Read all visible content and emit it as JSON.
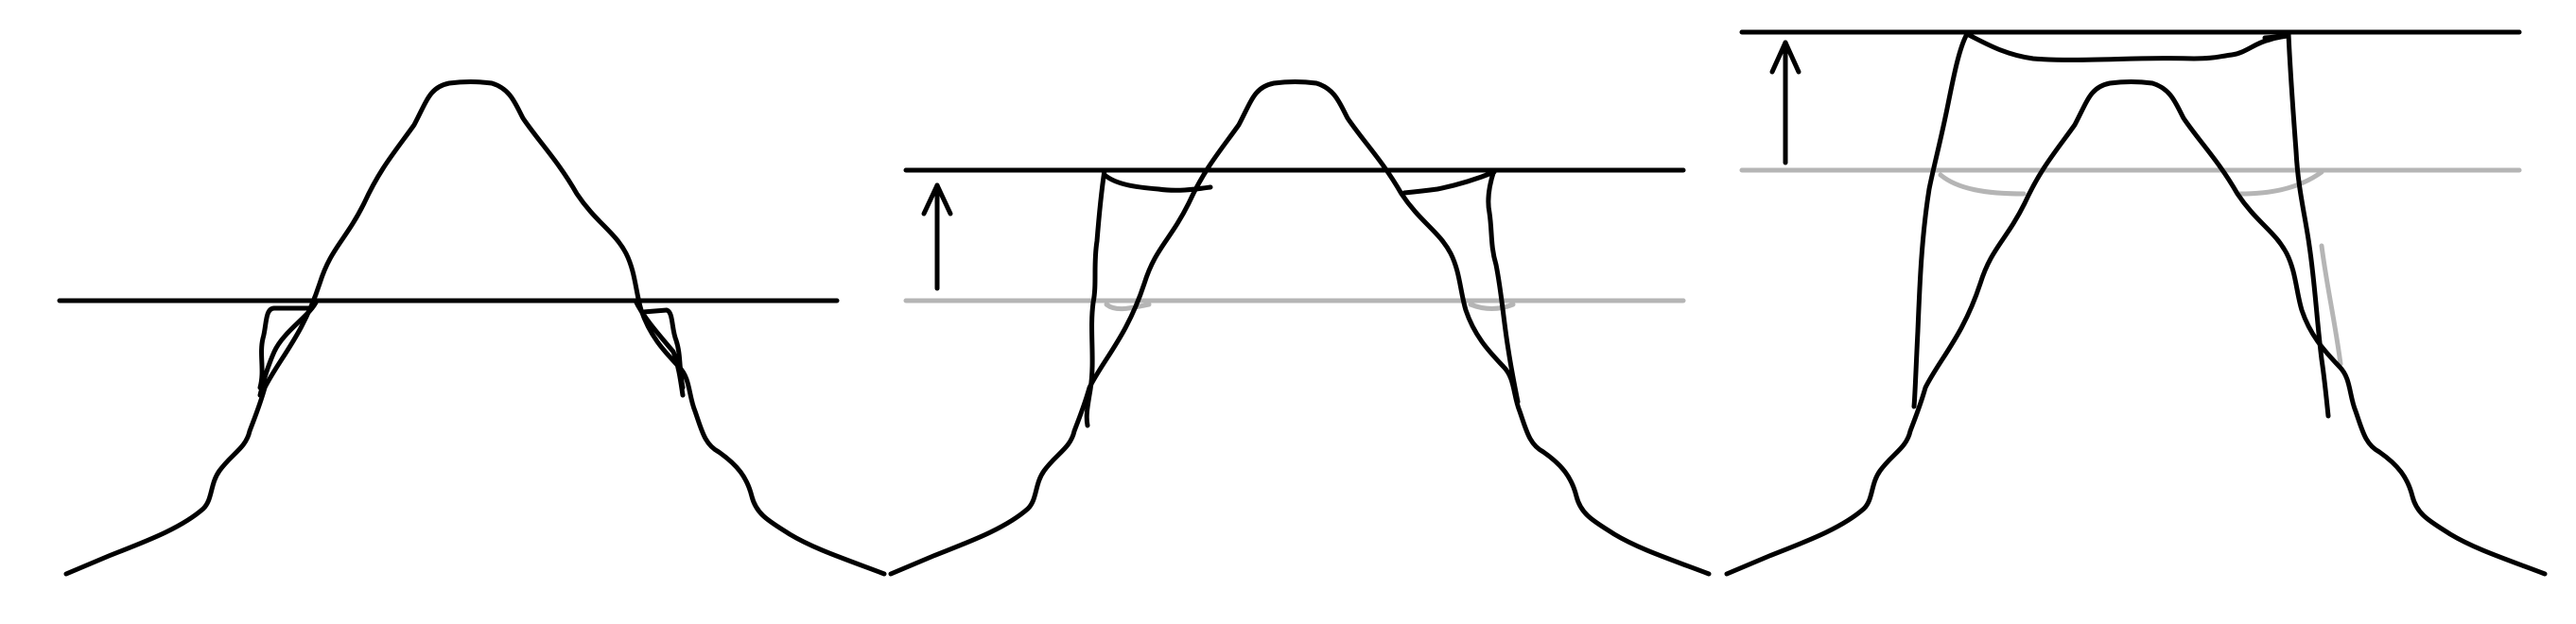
{
  "figure": {
    "description_free": true,
    "panels": [
      {
        "id": "panel-1",
        "has_arrow": false,
        "has_reference_line": false,
        "level_step": 0
      },
      {
        "id": "panel-2",
        "has_arrow": true,
        "has_reference_line": true,
        "level_step": 1
      },
      {
        "id": "panel-3",
        "has_arrow": true,
        "has_reference_line": true,
        "level_step": 2
      }
    ]
  },
  "colors": {
    "ink": "#000000",
    "ghost": "#b5b5b5",
    "background": "#ffffff"
  },
  "icons": {
    "arrow": "up-arrow-icon"
  }
}
